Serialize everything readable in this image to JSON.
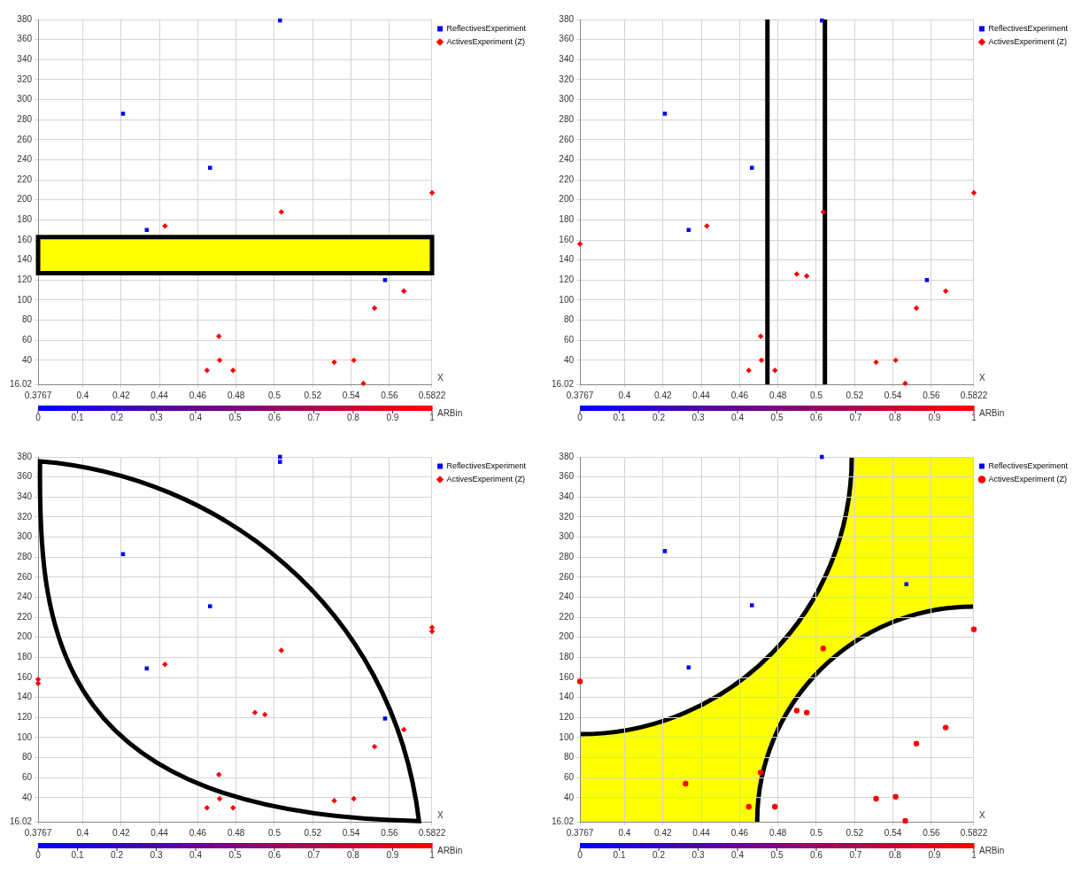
{
  "chart_data": [
    {
      "type": "scatter",
      "xlabel": "X",
      "clabel": "ARBin",
      "xlim": [
        0.3767,
        0.5822
      ],
      "xticks": [
        0.3767,
        0.4,
        0.42,
        0.44,
        0.46,
        0.48,
        0.5,
        0.52,
        0.54,
        0.56,
        0.5822
      ],
      "ylim": [
        16.02,
        380
      ],
      "yticks": [
        16.02,
        40,
        60,
        80,
        100,
        120,
        140,
        160,
        180,
        200,
        220,
        240,
        260,
        280,
        300,
        320,
        340,
        360,
        380
      ],
      "clim": [
        0,
        1
      ],
      "cticks": [
        0,
        0.1,
        0.2,
        0.3,
        0.4,
        0.5,
        0.6,
        0.7,
        0.8,
        0.9,
        1
      ],
      "grid": true,
      "legend": "top right",
      "bands": [
        {
          "axis": "y",
          "from": 127,
          "to": 163,
          "color": "#ffff00"
        }
      ],
      "series": [
        {
          "name": "ReflectivesExperiment",
          "marker": "square",
          "x": [
            0.421,
            0.4664,
            0.4334,
            0.5029,
            0.5577
          ],
          "values": [
            286,
            232,
            170,
            379,
            120
          ],
          "cvalues": [
            0,
            0,
            0,
            0,
            0
          ]
        },
        {
          "name": "ActivesExperiment (Z)",
          "marker": "diamond",
          "x": [
            0.4429,
            0.5036,
            0.5822,
            0.5675,
            0.5522,
            0.471,
            0.4714,
            0.4648,
            0.4784,
            0.5312,
            0.5414,
            0.5464
          ],
          "values": [
            174,
            188,
            207,
            109,
            92,
            64,
            40,
            30,
            30,
            38,
            40,
            17
          ],
          "cvalues": [
            1,
            1,
            1,
            1,
            1,
            1,
            1,
            1,
            1,
            1,
            1,
            1
          ]
        }
      ]
    },
    {
      "type": "scatter",
      "xlabel": "X",
      "clabel": "ARBin",
      "xlim": [
        0.3767,
        0.5822
      ],
      "xticks": [
        0.3767,
        0.4,
        0.42,
        0.44,
        0.46,
        0.48,
        0.5,
        0.52,
        0.54,
        0.56,
        0.5822
      ],
      "ylim": [
        16.02,
        380
      ],
      "yticks": [
        16.02,
        40,
        60,
        80,
        100,
        120,
        140,
        160,
        180,
        200,
        220,
        240,
        260,
        280,
        300,
        320,
        340,
        360,
        380
      ],
      "clim": [
        0,
        1
      ],
      "cticks": [
        0,
        0.1,
        0.2,
        0.3,
        0.4,
        0.5,
        0.6,
        0.7,
        0.8,
        0.9,
        1
      ],
      "grid": true,
      "legend": "top right",
      "ref_lines": [
        {
          "axis": "x",
          "value": 0.4745,
          "color": "#000000"
        },
        {
          "axis": "x",
          "value": 0.5045,
          "color": "#000000"
        }
      ],
      "series": [
        {
          "name": "ReflectivesExperiment",
          "marker": "square",
          "x": [
            0.421,
            0.4664,
            0.4334,
            0.5029,
            0.5577
          ],
          "values": [
            286,
            232,
            170,
            379,
            120
          ],
          "cvalues": [
            0,
            0,
            0,
            0,
            0
          ]
        },
        {
          "name": "ActivesExperiment (Z)",
          "marker": "diamond",
          "x": [
            0.3767,
            0.4429,
            0.5036,
            0.5822,
            0.4898,
            0.495,
            0.5675,
            0.5522,
            0.471,
            0.4714,
            0.4648,
            0.4784,
            0.5312,
            0.5414,
            0.5464
          ],
          "values": [
            156,
            174,
            188,
            207,
            126,
            124,
            109,
            92,
            64,
            40,
            30,
            30,
            38,
            40,
            17
          ],
          "cvalues": [
            1,
            1,
            1,
            1,
            1,
            1,
            1,
            1,
            1,
            1,
            1,
            1,
            1,
            1,
            1
          ]
        }
      ]
    },
    {
      "type": "scatter",
      "xlabel": "X",
      "clabel": "ARBin",
      "xlim": [
        0.3767,
        0.5822
      ],
      "xticks": [
        0.3767,
        0.4,
        0.42,
        0.44,
        0.46,
        0.48,
        0.5,
        0.52,
        0.54,
        0.56,
        0.5822
      ],
      "ylim": [
        16.02,
        380
      ],
      "yticks": [
        16.02,
        40,
        60,
        80,
        100,
        120,
        140,
        160,
        180,
        200,
        220,
        240,
        260,
        280,
        300,
        320,
        340,
        360,
        380
      ],
      "clim": [
        0,
        1
      ],
      "cticks": [
        0,
        0.1,
        0.2,
        0.3,
        0.4,
        0.5,
        0.6,
        0.7,
        0.8,
        0.9,
        1
      ],
      "grid": true,
      "legend": "top right",
      "series": [
        {
          "name": "ReflectivesExperiment",
          "marker": "square",
          "x": [
            0.421,
            0.4664,
            0.4334,
            0.5029,
            0.5029,
            0.5577
          ],
          "values": [
            283,
            231,
            169,
            380,
            375,
            119
          ],
          "cvalues": [
            0,
            0,
            0,
            0,
            0,
            0
          ]
        },
        {
          "name": "ActivesExperiment (Z)",
          "marker": "diamond",
          "x": [
            0.3767,
            0.3767,
            0.4429,
            0.5036,
            0.5822,
            0.5822,
            0.4898,
            0.495,
            0.5675,
            0.5522,
            0.471,
            0.4714,
            0.4648,
            0.4784,
            0.5312,
            0.5414
          ],
          "values": [
            158,
            154,
            173,
            187,
            210,
            206,
            125,
            123,
            108,
            91,
            63,
            39,
            30,
            30,
            37,
            39
          ],
          "cvalues": [
            1,
            1,
            1,
            1,
            1,
            1,
            1,
            1,
            1,
            1,
            1,
            1,
            1,
            1,
            1,
            1
          ]
        }
      ]
    },
    {
      "type": "scatter",
      "xlabel": "X",
      "clabel": "ARBin",
      "xlim": [
        0.3767,
        0.5822
      ],
      "xticks": [
        0.3767,
        0.4,
        0.42,
        0.44,
        0.46,
        0.48,
        0.5,
        0.52,
        0.54,
        0.56,
        0.5822
      ],
      "ylim": [
        16.02,
        380
      ],
      "yticks": [
        16.02,
        40,
        60,
        80,
        100,
        120,
        140,
        160,
        180,
        200,
        220,
        240,
        260,
        280,
        300,
        320,
        340,
        360,
        380
      ],
      "clim": [
        0,
        1
      ],
      "cticks": [
        0,
        0.1,
        0.2,
        0.3,
        0.4,
        0.5,
        0.6,
        0.7,
        0.8,
        0.9,
        1
      ],
      "grid": true,
      "legend": "top right",
      "series": [
        {
          "name": "ReflectivesExperiment",
          "marker": "square",
          "x": [
            0.421,
            0.4664,
            0.4334,
            0.5029,
            0.547
          ],
          "values": [
            286,
            232,
            170,
            380,
            253
          ],
          "cvalues": [
            0,
            0,
            0,
            0,
            0
          ]
        },
        {
          "name": "ActivesExperiment (Z)",
          "marker": "circle",
          "x": [
            0.3767,
            0.4318,
            0.5036,
            0.5822,
            0.4898,
            0.495,
            0.5675,
            0.5522,
            0.471,
            0.4648,
            0.4784,
            0.5312,
            0.5414,
            0.5464
          ],
          "values": [
            156,
            54,
            189,
            208,
            127,
            125,
            110,
            94,
            65,
            31,
            31,
            39,
            41,
            17
          ],
          "cvalues": [
            1,
            1,
            1,
            1,
            1,
            1,
            1,
            1,
            1,
            1,
            1,
            1,
            1,
            1
          ]
        }
      ]
    }
  ]
}
